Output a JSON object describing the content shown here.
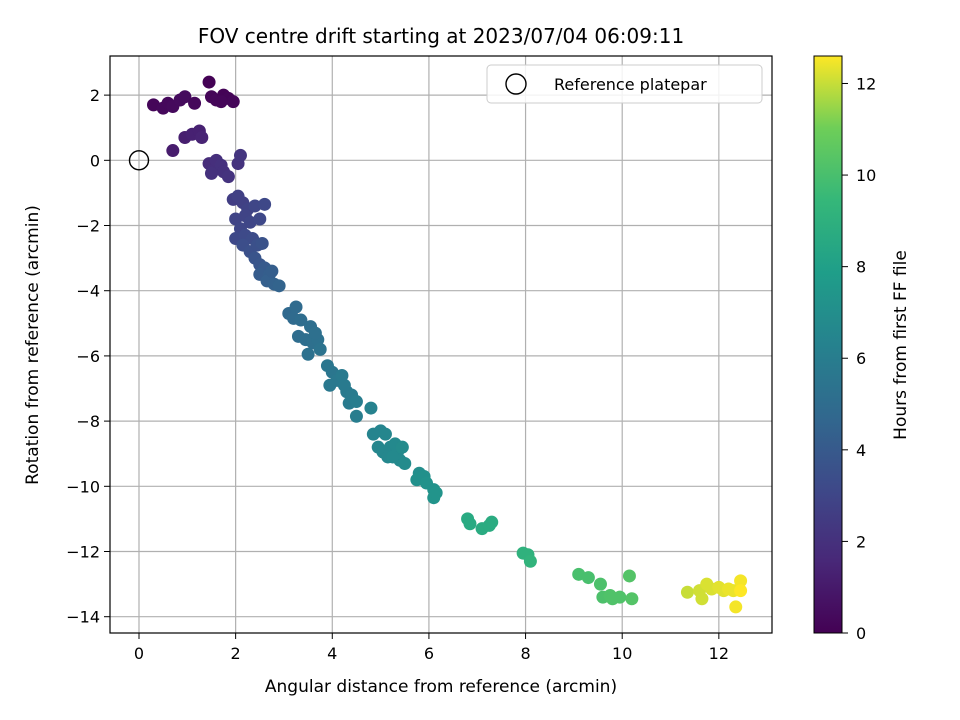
{
  "chart_data": {
    "type": "scatter",
    "title": "FOV centre drift starting at 2023/07/04 06:09:11",
    "xlabel": "Angular distance from reference (arcmin)",
    "ylabel": "Rotation from reference (arcmin)",
    "xlim": [
      -0.6,
      13.1
    ],
    "ylim": [
      -14.5,
      3.2
    ],
    "xticks": [
      0,
      2,
      4,
      6,
      8,
      10,
      12
    ],
    "yticks": [
      -14,
      -12,
      -10,
      -8,
      -6,
      -4,
      -2,
      0,
      2
    ],
    "grid": true,
    "legend": {
      "label": "Reference platepar",
      "placement": "top-right"
    },
    "reference_point": {
      "x": 0,
      "y": 0
    },
    "colorbar": {
      "label": "Hours from first FF file",
      "colormap": "viridis",
      "range": [
        0,
        12.6
      ],
      "ticks": [
        0,
        2,
        4,
        6,
        8,
        10,
        12
      ]
    },
    "points": [
      {
        "x": 0.3,
        "y": 1.7,
        "c": 0.2
      },
      {
        "x": 0.5,
        "y": 1.6,
        "c": 0.3
      },
      {
        "x": 0.6,
        "y": 1.75,
        "c": 0.3
      },
      {
        "x": 0.7,
        "y": 1.65,
        "c": 0.35
      },
      {
        "x": 0.85,
        "y": 1.85,
        "c": 0.4
      },
      {
        "x": 0.95,
        "y": 1.95,
        "c": 0.4
      },
      {
        "x": 1.15,
        "y": 1.75,
        "c": 0.3
      },
      {
        "x": 1.45,
        "y": 2.4,
        "c": 0.05
      },
      {
        "x": 1.5,
        "y": 1.95,
        "c": 0.15
      },
      {
        "x": 1.6,
        "y": 1.85,
        "c": 0.2
      },
      {
        "x": 1.75,
        "y": 2.0,
        "c": 0.1
      },
      {
        "x": 1.85,
        "y": 1.9,
        "c": 0.15
      },
      {
        "x": 1.95,
        "y": 1.8,
        "c": 0.2
      },
      {
        "x": 1.7,
        "y": 1.8,
        "c": 0.2
      },
      {
        "x": 0.7,
        "y": 0.3,
        "c": 1.1
      },
      {
        "x": 0.95,
        "y": 0.7,
        "c": 1.2
      },
      {
        "x": 1.1,
        "y": 0.8,
        "c": 1.3
      },
      {
        "x": 1.25,
        "y": 0.9,
        "c": 1.3
      },
      {
        "x": 1.3,
        "y": 0.7,
        "c": 1.4
      },
      {
        "x": 1.45,
        "y": -0.1,
        "c": 1.8
      },
      {
        "x": 1.55,
        "y": -0.3,
        "c": 1.9
      },
      {
        "x": 1.6,
        "y": 0.0,
        "c": 1.9
      },
      {
        "x": 1.7,
        "y": -0.15,
        "c": 2.0
      },
      {
        "x": 1.5,
        "y": -0.4,
        "c": 2.0
      },
      {
        "x": 1.75,
        "y": -0.35,
        "c": 2.0
      },
      {
        "x": 1.85,
        "y": -0.5,
        "c": 2.1
      },
      {
        "x": 2.05,
        "y": -0.1,
        "c": 2.1
      },
      {
        "x": 2.1,
        "y": 0.15,
        "c": 2.2
      },
      {
        "x": 1.95,
        "y": -1.2,
        "c": 2.6
      },
      {
        "x": 2.05,
        "y": -1.1,
        "c": 2.7
      },
      {
        "x": 2.15,
        "y": -1.3,
        "c": 2.7
      },
      {
        "x": 2.25,
        "y": -1.5,
        "c": 2.8
      },
      {
        "x": 2.0,
        "y": -1.8,
        "c": 2.9
      },
      {
        "x": 2.2,
        "y": -1.7,
        "c": 2.9
      },
      {
        "x": 2.3,
        "y": -1.9,
        "c": 3.0
      },
      {
        "x": 2.1,
        "y": -2.1,
        "c": 3.0
      },
      {
        "x": 2.4,
        "y": -1.4,
        "c": 3.0
      },
      {
        "x": 2.5,
        "y": -1.8,
        "c": 3.1
      },
      {
        "x": 2.6,
        "y": -1.35,
        "c": 3.1
      },
      {
        "x": 2.0,
        "y": -2.4,
        "c": 3.1
      },
      {
        "x": 2.2,
        "y": -2.3,
        "c": 3.2
      },
      {
        "x": 2.35,
        "y": -2.4,
        "c": 3.3
      },
      {
        "x": 2.15,
        "y": -2.6,
        "c": 3.4
      },
      {
        "x": 2.3,
        "y": -2.8,
        "c": 3.5
      },
      {
        "x": 2.45,
        "y": -2.6,
        "c": 3.5
      },
      {
        "x": 2.55,
        "y": -2.55,
        "c": 3.6
      },
      {
        "x": 2.4,
        "y": -3.0,
        "c": 3.7
      },
      {
        "x": 2.5,
        "y": -3.2,
        "c": 3.8
      },
      {
        "x": 2.6,
        "y": -3.3,
        "c": 4.0
      },
      {
        "x": 2.5,
        "y": -3.5,
        "c": 4.1
      },
      {
        "x": 2.7,
        "y": -3.5,
        "c": 4.2
      },
      {
        "x": 2.65,
        "y": -3.7,
        "c": 4.3
      },
      {
        "x": 2.8,
        "y": -3.8,
        "c": 4.4
      },
      {
        "x": 2.9,
        "y": -3.85,
        "c": 4.5
      },
      {
        "x": 2.75,
        "y": -3.4,
        "c": 4.2
      },
      {
        "x": 3.1,
        "y": -4.7,
        "c": 4.8
      },
      {
        "x": 3.2,
        "y": -4.85,
        "c": 4.9
      },
      {
        "x": 3.25,
        "y": -4.5,
        "c": 4.9
      },
      {
        "x": 3.35,
        "y": -4.9,
        "c": 5.0
      },
      {
        "x": 3.3,
        "y": -5.4,
        "c": 5.0
      },
      {
        "x": 3.45,
        "y": -5.5,
        "c": 5.1
      },
      {
        "x": 3.55,
        "y": -5.1,
        "c": 5.1
      },
      {
        "x": 3.6,
        "y": -5.6,
        "c": 5.2
      },
      {
        "x": 3.5,
        "y": -5.95,
        "c": 5.3
      },
      {
        "x": 3.7,
        "y": -5.5,
        "c": 5.3
      },
      {
        "x": 3.75,
        "y": -5.8,
        "c": 5.4
      },
      {
        "x": 3.65,
        "y": -5.3,
        "c": 5.2
      },
      {
        "x": 3.9,
        "y": -6.3,
        "c": 5.6
      },
      {
        "x": 4.0,
        "y": -6.5,
        "c": 5.6
      },
      {
        "x": 3.95,
        "y": -6.9,
        "c": 5.7
      },
      {
        "x": 4.1,
        "y": -6.75,
        "c": 5.7
      },
      {
        "x": 4.2,
        "y": -6.6,
        "c": 5.8
      },
      {
        "x": 4.3,
        "y": -7.1,
        "c": 5.8
      },
      {
        "x": 4.4,
        "y": -7.2,
        "c": 5.9
      },
      {
        "x": 4.35,
        "y": -7.45,
        "c": 5.9
      },
      {
        "x": 4.5,
        "y": -7.4,
        "c": 6.0
      },
      {
        "x": 4.5,
        "y": -7.85,
        "c": 6.0
      },
      {
        "x": 4.25,
        "y": -6.9,
        "c": 5.8
      },
      {
        "x": 4.8,
        "y": -7.6,
        "c": 6.3
      },
      {
        "x": 4.85,
        "y": -8.4,
        "c": 6.4
      },
      {
        "x": 5.0,
        "y": -8.3,
        "c": 6.4
      },
      {
        "x": 5.1,
        "y": -8.4,
        "c": 6.5
      },
      {
        "x": 4.95,
        "y": -8.8,
        "c": 6.5
      },
      {
        "x": 5.05,
        "y": -8.95,
        "c": 6.6
      },
      {
        "x": 5.2,
        "y": -8.8,
        "c": 6.6
      },
      {
        "x": 5.15,
        "y": -9.1,
        "c": 6.6
      },
      {
        "x": 5.3,
        "y": -8.7,
        "c": 6.7
      },
      {
        "x": 5.35,
        "y": -8.95,
        "c": 6.7
      },
      {
        "x": 5.4,
        "y": -9.2,
        "c": 6.7
      },
      {
        "x": 5.5,
        "y": -9.3,
        "c": 6.8
      },
      {
        "x": 5.25,
        "y": -9.1,
        "c": 6.7
      },
      {
        "x": 5.45,
        "y": -8.8,
        "c": 6.8
      },
      {
        "x": 5.8,
        "y": -9.6,
        "c": 7.0
      },
      {
        "x": 5.75,
        "y": -9.8,
        "c": 7.1
      },
      {
        "x": 5.9,
        "y": -9.7,
        "c": 7.1
      },
      {
        "x": 5.95,
        "y": -9.9,
        "c": 7.2
      },
      {
        "x": 6.1,
        "y": -10.1,
        "c": 7.2
      },
      {
        "x": 6.1,
        "y": -10.35,
        "c": 7.3
      },
      {
        "x": 6.15,
        "y": -10.2,
        "c": 7.3
      },
      {
        "x": 6.8,
        "y": -11.0,
        "c": 8.6
      },
      {
        "x": 6.85,
        "y": -11.15,
        "c": 8.6
      },
      {
        "x": 7.1,
        "y": -11.3,
        "c": 8.7
      },
      {
        "x": 7.25,
        "y": -11.2,
        "c": 8.7
      },
      {
        "x": 7.3,
        "y": -11.1,
        "c": 8.7
      },
      {
        "x": 7.95,
        "y": -12.05,
        "c": 9.1
      },
      {
        "x": 8.05,
        "y": -12.1,
        "c": 9.1
      },
      {
        "x": 8.1,
        "y": -12.3,
        "c": 9.2
      },
      {
        "x": 9.1,
        "y": -12.7,
        "c": 10.0
      },
      {
        "x": 9.3,
        "y": -12.8,
        "c": 10.0
      },
      {
        "x": 9.55,
        "y": -13.0,
        "c": 10.1
      },
      {
        "x": 9.6,
        "y": -13.4,
        "c": 10.1
      },
      {
        "x": 9.75,
        "y": -13.35,
        "c": 10.2
      },
      {
        "x": 9.8,
        "y": -13.45,
        "c": 10.2
      },
      {
        "x": 9.95,
        "y": -13.4,
        "c": 10.2
      },
      {
        "x": 10.15,
        "y": -12.75,
        "c": 10.3
      },
      {
        "x": 10.2,
        "y": -13.45,
        "c": 10.3
      },
      {
        "x": 11.35,
        "y": -13.25,
        "c": 12.0
      },
      {
        "x": 11.6,
        "y": -13.2,
        "c": 12.1
      },
      {
        "x": 11.65,
        "y": -13.45,
        "c": 12.1
      },
      {
        "x": 11.75,
        "y": -13.0,
        "c": 12.2
      },
      {
        "x": 11.85,
        "y": -13.15,
        "c": 12.2
      },
      {
        "x": 12.0,
        "y": -13.1,
        "c": 12.3
      },
      {
        "x": 12.1,
        "y": -13.2,
        "c": 12.3
      },
      {
        "x": 12.2,
        "y": -13.15,
        "c": 12.4
      },
      {
        "x": 12.3,
        "y": -13.2,
        "c": 12.4
      },
      {
        "x": 12.35,
        "y": -13.7,
        "c": 12.5
      },
      {
        "x": 12.45,
        "y": -12.9,
        "c": 12.5
      },
      {
        "x": 12.45,
        "y": -13.2,
        "c": 12.6
      }
    ]
  }
}
